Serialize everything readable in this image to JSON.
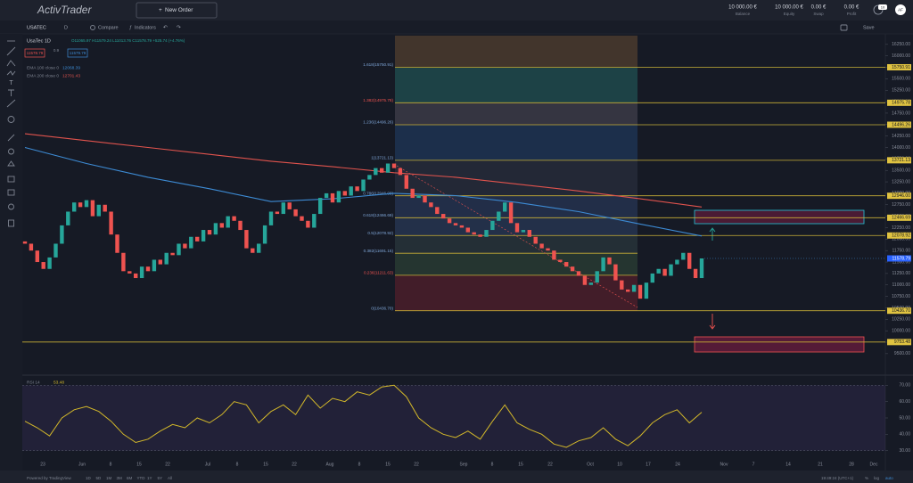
{
  "header": {
    "logo": "ActivTrader",
    "new_order": "New Order",
    "stats": [
      {
        "value": "10 000.00 €",
        "label": "Balance"
      },
      {
        "value": "10 000.00 €",
        "label": "Equity"
      },
      {
        "value": "0.00 €",
        "label": "Swap"
      },
      {
        "value": "0.00 €",
        "label": "Profit"
      }
    ],
    "badge": "10",
    "avatar": "AF"
  },
  "toolbar": {
    "symbol": "USATEC",
    "interval": "D",
    "compare": "Compare",
    "indicators": "Indicators",
    "save": "Save"
  },
  "legend": {
    "title": "UsaTec  1D",
    "ohlc": "O11065.97 H11579.24 L11013.76 C11578.79 +525.74 (+4.76%)",
    "sell": "11578.79",
    "spread": "0.9",
    "buy": "11579.79"
  },
  "chart_data": [
    {
      "type": "candlestick",
      "open": 11950,
      "values": [
        11900,
        11750,
        11500,
        11350,
        11600,
        11900,
        12300,
        12600,
        12800,
        12700,
        12850,
        12500,
        12750,
        12600,
        12100,
        11700,
        11300,
        11250,
        11150,
        11400,
        11300,
        11550,
        11450,
        11700,
        11650,
        11900,
        11800,
        12050,
        11950,
        12200,
        12100,
        12350,
        12250,
        12500,
        12400,
        12200,
        11800,
        11700,
        11900,
        12300,
        12600,
        12550,
        12800,
        12650,
        12500,
        12400,
        12250,
        12550,
        12900,
        13000,
        12800,
        13050,
        12950,
        13150,
        13050,
        13300,
        13400,
        13550,
        13450,
        13650,
        13550,
        13400,
        13100,
        12900,
        12950,
        12800,
        12700,
        12550,
        12450,
        12350,
        12300,
        12250,
        12150,
        12100,
        12050,
        12200,
        12400,
        12600,
        12800,
        12350,
        12150,
        12200,
        12050,
        11900,
        11800,
        11750,
        11550,
        11500,
        11400,
        11300,
        11200,
        11000,
        11050,
        11300,
        11600,
        11450,
        11100,
        10900,
        10850,
        11000,
        10700,
        11050,
        11250,
        11350,
        11200,
        11450,
        11550,
        11700,
        11350,
        11150,
        11578.79
      ],
      "up_color": "#26a69a",
      "down_color": "#ef5350",
      "series": [
        {
          "name": "EMA 100 close 0",
          "color": "#3d8bd4",
          "values": [
            14000,
            13650,
            13350,
            13100,
            12820,
            12880,
            13000,
            12950,
            12800,
            12600,
            12330,
            12068.39
          ]
        },
        {
          "name": "EMA 200 close 0",
          "color": "#e0534d",
          "values": [
            14300,
            14150,
            14000,
            13850,
            13700,
            13580,
            13450,
            13350,
            13200,
            13050,
            12880,
            12701.43
          ]
        }
      ],
      "ylim": [
        9050,
        16480
      ],
      "yticks": [
        {
          "value": 16250,
          "label": "16250.00"
        },
        {
          "value": 16000,
          "label": "16000.00"
        },
        {
          "value": 15750,
          "label": "15750.00"
        },
        {
          "value": 15500,
          "label": "15500.00"
        },
        {
          "value": 15250,
          "label": "15250.00"
        },
        {
          "value": 15000,
          "label": "15000.00"
        },
        {
          "value": 14750,
          "label": "14750.00"
        },
        {
          "value": 14500,
          "label": "14500.00"
        },
        {
          "value": 14250,
          "label": "14250.00"
        },
        {
          "value": 14000,
          "label": "14000.00"
        },
        {
          "value": 13750,
          "label": "13750.00"
        },
        {
          "value": 13500,
          "label": "13500.00"
        },
        {
          "value": 13250,
          "label": "13250.00"
        },
        {
          "value": 13000,
          "label": "13000.00"
        },
        {
          "value": 12750,
          "label": "12750.00"
        },
        {
          "value": 12500,
          "label": "12500.00"
        },
        {
          "value": 12250,
          "label": "12250.00"
        },
        {
          "value": 12000,
          "label": "12000.00"
        },
        {
          "value": 11750,
          "label": "11750.00"
        },
        {
          "value": 11500,
          "label": "11500.00"
        },
        {
          "value": 11250,
          "label": "11250.00"
        },
        {
          "value": 11000,
          "label": "11000.00"
        },
        {
          "value": 10750,
          "label": "10750.00"
        },
        {
          "value": 10500,
          "label": "10500.00"
        },
        {
          "value": 10250,
          "label": "10250.00"
        },
        {
          "value": 10000,
          "label": "10000.00"
        },
        {
          "value": 9750,
          "label": "9750.00"
        },
        {
          "value": 9500,
          "label": "9500.00"
        }
      ],
      "grid": false,
      "fib": {
        "top_color": "#4a3b2e",
        "levels": [
          {
            "label": "1.618(15750.91)",
            "price": 15750.91,
            "price_label": "15750.91",
            "color": "#1e4a4c"
          },
          {
            "label": "1.382(14975.78)",
            "price": 14975.78,
            "price_label": "14975.78",
            "color": "#3b3b46"
          },
          {
            "label": "1.236(14496.26)",
            "price": 14496.26,
            "price_label": "14496.26",
            "color": "#1d3452"
          },
          {
            "label": "1(13721.13)",
            "price": 13721.13,
            "price_label": "13721.13",
            "color": "#262c3a"
          },
          {
            "label": "0.786(12946.00)",
            "price": 12946.0,
            "price_label": "12946.00",
            "color": "#24324f"
          },
          {
            "label": "0.618(12466.69)",
            "price": 12466.69,
            "price_label": "12466.69",
            "color": "#263550"
          },
          {
            "label": "0.5(12078.92)",
            "price": 12078.92,
            "price_label": "12078.92",
            "color": "#27343a"
          },
          {
            "label": "0.382(11691.15)",
            "price": 11691.15,
            "price_label": "11691.15",
            "color": "#283b32"
          },
          {
            "label": "0.236(11211.63)",
            "price": 11211.63,
            "price_label": "11211.63",
            "color": "#4a1e2a"
          },
          {
            "label": "0(10436.70)",
            "price": 10436.7,
            "price_label": "10436.70"
          }
        ]
      },
      "extra_level": {
        "price": 9753.48,
        "price_label": "9753.48"
      },
      "current_price": 11578.79,
      "x_labels": [
        "23",
        "Jun",
        "8",
        "15",
        "22",
        "Jul",
        "8",
        "15",
        "22",
        "Aug",
        "8",
        "15",
        "22",
        "Sep",
        "8",
        "15",
        "22",
        "Oct",
        "10",
        "17",
        "24",
        "Nov",
        "7",
        "14",
        "21",
        "28",
        "Dec"
      ]
    },
    {
      "type": "line",
      "title": "RSI 14",
      "color": "#d4b92a",
      "values": [
        48,
        44,
        39,
        50,
        55,
        57,
        54,
        48,
        40,
        35,
        37,
        42,
        46,
        44,
        50,
        47,
        52,
        60,
        58,
        47,
        54,
        58,
        52,
        64,
        56,
        62,
        60,
        66,
        64,
        69,
        70,
        63,
        50,
        44,
        40,
        38,
        42,
        37,
        48,
        58,
        47,
        43,
        40,
        34,
        32,
        36,
        38,
        44,
        37,
        33,
        39,
        47,
        52,
        55,
        47,
        53.48
      ],
      "ylim": [
        26,
        74
      ],
      "yticks": [
        {
          "value": 70,
          "label": "70.00"
        },
        {
          "value": 60,
          "label": "60.00"
        },
        {
          "value": 50,
          "label": "50.00"
        },
        {
          "value": 40,
          "label": "40.00"
        },
        {
          "value": 30,
          "label": "30.00"
        }
      ]
    }
  ],
  "footer": {
    "powered": "Powered by TradingView",
    "ranges": [
      "1D",
      "5D",
      "1M",
      "3M",
      "6M",
      "YTD",
      "1Y",
      "5Y",
      "All"
    ],
    "time": "19:49:24 (UTC+1)",
    "percent": "%",
    "log": "log",
    "auto": "auto"
  }
}
